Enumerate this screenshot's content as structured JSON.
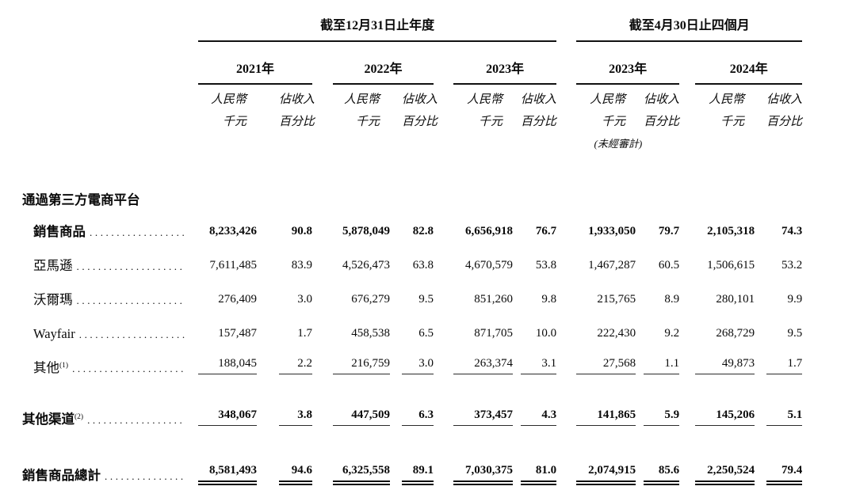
{
  "table": {
    "header": {
      "period_annual": "截至12月31日止年度",
      "period_interim": "截至4月30日止四個月",
      "years": [
        "2021年",
        "2022年",
        "2023年",
        "2023年",
        "2024年"
      ],
      "rmb_line1": "人民幣",
      "rmb_line2": "千元",
      "pct_line1": "佔收入",
      "pct_line2": "百分比",
      "unaudited": "(未經審計)"
    },
    "section_header": "通過第三方電商平台",
    "rows": [
      {
        "label": "銷售商品",
        "sup": "",
        "values": [
          "8,233,426",
          "90.8",
          "5,878,049",
          "82.8",
          "6,656,918",
          "76.7",
          "1,933,050",
          "79.7",
          "2,105,318",
          "74.3"
        ]
      },
      {
        "label": "亞馬遜",
        "sup": "",
        "values": [
          "7,611,485",
          "83.9",
          "4,526,473",
          "63.8",
          "4,670,579",
          "53.8",
          "1,467,287",
          "60.5",
          "1,506,615",
          "53.2"
        ]
      },
      {
        "label": "沃爾瑪",
        "sup": "",
        "values": [
          "276,409",
          "3.0",
          "676,279",
          "9.5",
          "851,260",
          "9.8",
          "215,765",
          "8.9",
          "280,101",
          "9.9"
        ]
      },
      {
        "label": "Wayfair",
        "sup": "",
        "values": [
          "157,487",
          "1.7",
          "458,538",
          "6.5",
          "871,705",
          "10.0",
          "222,430",
          "9.2",
          "268,729",
          "9.5"
        ]
      },
      {
        "label": "其他",
        "sup": "(1)",
        "values": [
          "188,045",
          "2.2",
          "216,759",
          "3.0",
          "263,374",
          "3.1",
          "27,568",
          "1.1",
          "49,873",
          "1.7"
        ]
      },
      {
        "label": "其他渠道",
        "sup": "(2)",
        "values": [
          "348,067",
          "3.8",
          "447,509",
          "6.3",
          "373,457",
          "4.3",
          "141,865",
          "5.9",
          "145,206",
          "5.1"
        ]
      },
      {
        "label": "銷售商品總計",
        "sup": "",
        "values": [
          "8,581,493",
          "94.6",
          "6,325,558",
          "89.1",
          "7,030,375",
          "81.0",
          "2,074,915",
          "85.6",
          "2,250,524",
          "79.4"
        ]
      }
    ]
  }
}
